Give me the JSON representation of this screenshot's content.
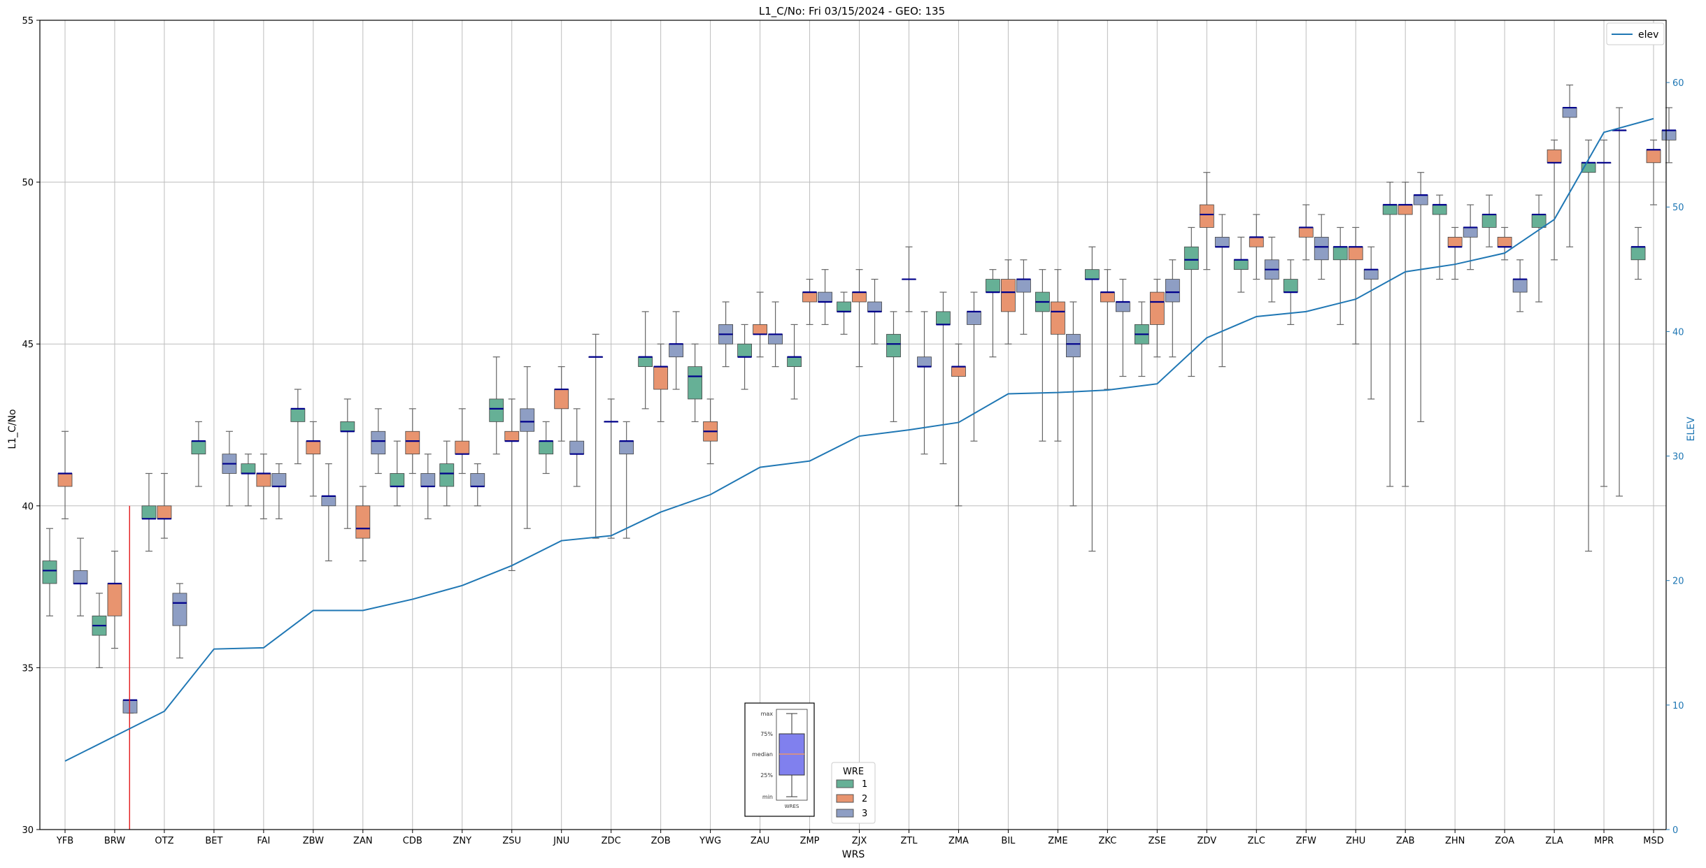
{
  "chart_data": {
    "type": "boxplot",
    "title": "L1_C/No: Fri 03/15/2024 - GEO: 135",
    "xlabel": "WRS",
    "ylabel": "L1_C/No",
    "y2label": "ELEV",
    "ylim": [
      30,
      55
    ],
    "y2lim": [
      0,
      65
    ],
    "yticks": [
      30,
      35,
      40,
      45,
      50,
      55
    ],
    "y2ticks": [
      0,
      10,
      20,
      30,
      40,
      50,
      60
    ],
    "grid": true,
    "colors": {
      "wre1": "#66b096",
      "wre2": "#e8946f",
      "wre3": "#8e9ec4",
      "elev": "#1f77b4",
      "median": "#00008b",
      "marker": "#e31a1c"
    },
    "categories": [
      "YFB",
      "BRW",
      "OTZ",
      "BET",
      "FAI",
      "ZBW",
      "ZAN",
      "CDB",
      "ZNY",
      "ZSU",
      "JNU",
      "ZDC",
      "ZOB",
      "YWG",
      "ZAU",
      "ZMP",
      "ZJX",
      "ZTL",
      "ZMA",
      "BIL",
      "ZME",
      "ZKC",
      "ZSE",
      "ZDV",
      "ZLC",
      "ZFW",
      "ZHU",
      "ZAB",
      "ZHN",
      "ZOA",
      "ZLA",
      "MPR",
      "MSD"
    ],
    "elev_series": {
      "name": "elev",
      "values": [
        5.5,
        7.5,
        9.5,
        14.5,
        14.6,
        17.6,
        17.6,
        18.5,
        19.6,
        21.2,
        23.2,
        23.6,
        25.5,
        26.9,
        29.1,
        29.6,
        31.6,
        32.1,
        32.7,
        35.0,
        35.1,
        35.3,
        35.8,
        39.5,
        41.2,
        41.6,
        42.6,
        44.8,
        45.4,
        46.3,
        49.0,
        56.0,
        57.1
      ]
    },
    "vertical_marker": {
      "category_position": 1.3,
      "ymin": 30,
      "ymax": 40
    },
    "boxes": [
      {
        "wrs": "YFB",
        "wre": 1,
        "min": 36.6,
        "q1": 37.6,
        "median": 38.0,
        "q3": 38.3,
        "max": 39.3
      },
      {
        "wrs": "YFB",
        "wre": 2,
        "min": 39.6,
        "q1": 40.6,
        "median": 41.0,
        "q3": 41.0,
        "max": 42.3
      },
      {
        "wrs": "YFB",
        "wre": 3,
        "min": 36.6,
        "q1": 37.6,
        "median": 37.6,
        "q3": 38.0,
        "max": 39.0
      },
      {
        "wrs": "BRW",
        "wre": 1,
        "min": 35.0,
        "q1": 36.0,
        "median": 36.3,
        "q3": 36.6,
        "max": 37.3
      },
      {
        "wrs": "BRW",
        "wre": 2,
        "min": 35.6,
        "q1": 36.6,
        "median": 37.6,
        "q3": 37.6,
        "max": 38.6
      },
      {
        "wrs": "BRW",
        "wre": 3,
        "min": 33.6,
        "q1": 33.6,
        "median": 34.0,
        "q3": 34.0,
        "max": 34.0
      },
      {
        "wrs": "OTZ",
        "wre": 1,
        "min": 38.6,
        "q1": 39.6,
        "median": 39.6,
        "q3": 40.0,
        "max": 41.0
      },
      {
        "wrs": "OTZ",
        "wre": 2,
        "min": 39.0,
        "q1": 39.6,
        "median": 39.6,
        "q3": 40.0,
        "max": 41.0
      },
      {
        "wrs": "OTZ",
        "wre": 3,
        "min": 35.3,
        "q1": 36.3,
        "median": 37.0,
        "q3": 37.3,
        "max": 37.6
      },
      {
        "wrs": "BET",
        "wre": 1,
        "min": 40.6,
        "q1": 41.6,
        "median": 42.0,
        "q3": 42.0,
        "max": 42.6
      },
      {
        "wrs": "BET",
        "wre": 3,
        "min": 40.0,
        "q1": 41.0,
        "median": 41.3,
        "q3": 41.6,
        "max": 42.3
      },
      {
        "wrs": "FAI",
        "wre": 1,
        "min": 40.0,
        "q1": 41.0,
        "median": 41.0,
        "q3": 41.3,
        "max": 41.6
      },
      {
        "wrs": "FAI",
        "wre": 2,
        "min": 39.6,
        "q1": 40.6,
        "median": 41.0,
        "q3": 41.0,
        "max": 41.6
      },
      {
        "wrs": "FAI",
        "wre": 3,
        "min": 39.6,
        "q1": 40.6,
        "median": 40.6,
        "q3": 41.0,
        "max": 41.3
      },
      {
        "wrs": "ZBW",
        "wre": 1,
        "min": 41.3,
        "q1": 42.6,
        "median": 43.0,
        "q3": 43.0,
        "max": 43.6
      },
      {
        "wrs": "ZBW",
        "wre": 2,
        "min": 40.3,
        "q1": 41.6,
        "median": 42.0,
        "q3": 42.0,
        "max": 42.6
      },
      {
        "wrs": "ZBW",
        "wre": 3,
        "min": 38.3,
        "q1": 40.0,
        "median": 40.3,
        "q3": 40.3,
        "max": 41.3
      },
      {
        "wrs": "ZAN",
        "wre": 1,
        "min": 39.3,
        "q1": 42.3,
        "median": 42.3,
        "q3": 42.6,
        "max": 43.3
      },
      {
        "wrs": "ZAN",
        "wre": 2,
        "min": 38.3,
        "q1": 39.0,
        "median": 39.3,
        "q3": 40.0,
        "max": 40.6
      },
      {
        "wrs": "ZAN",
        "wre": 3,
        "min": 41.0,
        "q1": 41.6,
        "median": 42.0,
        "q3": 42.3,
        "max": 43.0
      },
      {
        "wrs": "CDB",
        "wre": 1,
        "min": 40.0,
        "q1": 40.6,
        "median": 40.6,
        "q3": 41.0,
        "max": 42.0
      },
      {
        "wrs": "CDB",
        "wre": 2,
        "min": 41.0,
        "q1": 41.6,
        "median": 42.0,
        "q3": 42.3,
        "max": 43.0
      },
      {
        "wrs": "CDB",
        "wre": 3,
        "min": 39.6,
        "q1": 40.6,
        "median": 40.6,
        "q3": 41.0,
        "max": 41.6
      },
      {
        "wrs": "ZNY",
        "wre": 1,
        "min": 40.0,
        "q1": 40.6,
        "median": 41.0,
        "q3": 41.3,
        "max": 42.0
      },
      {
        "wrs": "ZNY",
        "wre": 2,
        "min": 41.0,
        "q1": 41.6,
        "median": 41.6,
        "q3": 42.0,
        "max": 43.0
      },
      {
        "wrs": "ZNY",
        "wre": 3,
        "min": 40.0,
        "q1": 40.6,
        "median": 40.6,
        "q3": 41.0,
        "max": 41.3
      },
      {
        "wrs": "ZSU",
        "wre": 1,
        "min": 41.6,
        "q1": 42.6,
        "median": 43.0,
        "q3": 43.3,
        "max": 44.6
      },
      {
        "wrs": "ZSU",
        "wre": 2,
        "min": 38.0,
        "q1": 42.0,
        "median": 42.0,
        "q3": 42.3,
        "max": 43.3
      },
      {
        "wrs": "ZSU",
        "wre": 3,
        "min": 39.3,
        "q1": 42.3,
        "median": 42.6,
        "q3": 43.0,
        "max": 44.3
      },
      {
        "wrs": "JNU",
        "wre": 1,
        "min": 41.0,
        "q1": 41.6,
        "median": 42.0,
        "q3": 42.0,
        "max": 42.6
      },
      {
        "wrs": "JNU",
        "wre": 2,
        "min": 42.0,
        "q1": 43.0,
        "median": 43.6,
        "q3": 43.6,
        "max": 44.3
      },
      {
        "wrs": "JNU",
        "wre": 3,
        "min": 40.6,
        "q1": 41.6,
        "median": 41.6,
        "q3": 42.0,
        "max": 43.0
      },
      {
        "wrs": "ZDC",
        "wre": 1,
        "min": 39.0,
        "q1": 44.6,
        "median": 44.6,
        "q3": 44.6,
        "max": 45.3
      },
      {
        "wrs": "ZDC",
        "wre": 2,
        "min": 39.0,
        "q1": 42.6,
        "median": 42.6,
        "q3": 42.6,
        "max": 43.3
      },
      {
        "wrs": "ZDC",
        "wre": 3,
        "min": 39.0,
        "q1": 41.6,
        "median": 42.0,
        "q3": 42.0,
        "max": 42.6
      },
      {
        "wrs": "ZOB",
        "wre": 1,
        "min": 43.0,
        "q1": 44.3,
        "median": 44.6,
        "q3": 44.6,
        "max": 46.0
      },
      {
        "wrs": "ZOB",
        "wre": 2,
        "min": 42.6,
        "q1": 43.6,
        "median": 44.3,
        "q3": 44.3,
        "max": 45.0
      },
      {
        "wrs": "ZOB",
        "wre": 3,
        "min": 43.6,
        "q1": 44.6,
        "median": 45.0,
        "q3": 45.0,
        "max": 46.0
      },
      {
        "wrs": "YWG",
        "wre": 1,
        "min": 42.6,
        "q1": 43.3,
        "median": 44.0,
        "q3": 44.3,
        "max": 45.0
      },
      {
        "wrs": "YWG",
        "wre": 2,
        "min": 41.3,
        "q1": 42.0,
        "median": 42.3,
        "q3": 42.6,
        "max": 43.3
      },
      {
        "wrs": "YWG",
        "wre": 3,
        "min": 44.3,
        "q1": 45.0,
        "median": 45.3,
        "q3": 45.6,
        "max": 46.3
      },
      {
        "wrs": "ZAU",
        "wre": 1,
        "min": 43.6,
        "q1": 44.6,
        "median": 44.6,
        "q3": 45.0,
        "max": 45.6
      },
      {
        "wrs": "ZAU",
        "wre": 2,
        "min": 44.6,
        "q1": 45.3,
        "median": 45.3,
        "q3": 45.6,
        "max": 46.6
      },
      {
        "wrs": "ZAU",
        "wre": 3,
        "min": 44.3,
        "q1": 45.0,
        "median": 45.3,
        "q3": 45.3,
        "max": 46.3
      },
      {
        "wrs": "ZMP",
        "wre": 1,
        "min": 43.3,
        "q1": 44.3,
        "median": 44.6,
        "q3": 44.6,
        "max": 45.6
      },
      {
        "wrs": "ZMP",
        "wre": 2,
        "min": 45.6,
        "q1": 46.3,
        "median": 46.6,
        "q3": 46.6,
        "max": 47.0
      },
      {
        "wrs": "ZMP",
        "wre": 3,
        "min": 45.6,
        "q1": 46.3,
        "median": 46.3,
        "q3": 46.6,
        "max": 47.3
      },
      {
        "wrs": "ZJX",
        "wre": 1,
        "min": 45.3,
        "q1": 46.0,
        "median": 46.0,
        "q3": 46.3,
        "max": 46.6
      },
      {
        "wrs": "ZJX",
        "wre": 2,
        "min": 44.3,
        "q1": 46.3,
        "median": 46.6,
        "q3": 46.6,
        "max": 47.3
      },
      {
        "wrs": "ZJX",
        "wre": 3,
        "min": 45.0,
        "q1": 46.0,
        "median": 46.0,
        "q3": 46.3,
        "max": 47.0
      },
      {
        "wrs": "ZTL",
        "wre": 1,
        "min": 42.6,
        "q1": 44.6,
        "median": 45.0,
        "q3": 45.3,
        "max": 46.0
      },
      {
        "wrs": "ZTL",
        "wre": 2,
        "min": 46.0,
        "q1": 47.0,
        "median": 47.0,
        "q3": 47.0,
        "max": 48.0
      },
      {
        "wrs": "ZTL",
        "wre": 3,
        "min": 41.6,
        "q1": 44.3,
        "median": 44.3,
        "q3": 44.6,
        "max": 46.0
      },
      {
        "wrs": "ZMA",
        "wre": 1,
        "min": 41.3,
        "q1": 45.6,
        "median": 45.6,
        "q3": 46.0,
        "max": 46.6
      },
      {
        "wrs": "ZMA",
        "wre": 2,
        "min": 40.0,
        "q1": 44.0,
        "median": 44.3,
        "q3": 44.3,
        "max": 45.0
      },
      {
        "wrs": "ZMA",
        "wre": 3,
        "min": 42.0,
        "q1": 45.6,
        "median": 46.0,
        "q3": 46.0,
        "max": 46.6
      },
      {
        "wrs": "BIL",
        "wre": 1,
        "min": 44.6,
        "q1": 46.6,
        "median": 46.6,
        "q3": 47.0,
        "max": 47.3
      },
      {
        "wrs": "BIL",
        "wre": 2,
        "min": 45.0,
        "q1": 46.0,
        "median": 46.6,
        "q3": 47.0,
        "max": 47.6
      },
      {
        "wrs": "BIL",
        "wre": 3,
        "min": 45.3,
        "q1": 46.6,
        "median": 47.0,
        "q3": 47.0,
        "max": 47.6
      },
      {
        "wrs": "ZME",
        "wre": 1,
        "min": 42.0,
        "q1": 46.0,
        "median": 46.3,
        "q3": 46.6,
        "max": 47.3
      },
      {
        "wrs": "ZME",
        "wre": 2,
        "min": 42.0,
        "q1": 45.3,
        "median": 46.0,
        "q3": 46.3,
        "max": 47.3
      },
      {
        "wrs": "ZME",
        "wre": 3,
        "min": 40.0,
        "q1": 44.6,
        "median": 45.0,
        "q3": 45.3,
        "max": 46.3
      },
      {
        "wrs": "ZKC",
        "wre": 1,
        "min": 38.6,
        "q1": 47.0,
        "median": 47.0,
        "q3": 47.3,
        "max": 48.0
      },
      {
        "wrs": "ZKC",
        "wre": 2,
        "min": 43.6,
        "q1": 46.3,
        "median": 46.6,
        "q3": 46.6,
        "max": 47.3
      },
      {
        "wrs": "ZKC",
        "wre": 3,
        "min": 44.0,
        "q1": 46.0,
        "median": 46.3,
        "q3": 46.3,
        "max": 47.0
      },
      {
        "wrs": "ZSE",
        "wre": 1,
        "min": 44.0,
        "q1": 45.0,
        "median": 45.3,
        "q3": 45.6,
        "max": 46.3
      },
      {
        "wrs": "ZSE",
        "wre": 2,
        "min": 44.6,
        "q1": 45.6,
        "median": 46.3,
        "q3": 46.6,
        "max": 47.0
      },
      {
        "wrs": "ZSE",
        "wre": 3,
        "min": 44.6,
        "q1": 46.3,
        "median": 46.6,
        "q3": 47.0,
        "max": 47.6
      },
      {
        "wrs": "ZDV",
        "wre": 1,
        "min": 44.0,
        "q1": 47.3,
        "median": 47.6,
        "q3": 48.0,
        "max": 48.6
      },
      {
        "wrs": "ZDV",
        "wre": 2,
        "min": 47.3,
        "q1": 48.6,
        "median": 49.0,
        "q3": 49.3,
        "max": 50.3
      },
      {
        "wrs": "ZDV",
        "wre": 3,
        "min": 44.3,
        "q1": 48.0,
        "median": 48.0,
        "q3": 48.3,
        "max": 49.0
      },
      {
        "wrs": "ZLC",
        "wre": 1,
        "min": 46.6,
        "q1": 47.3,
        "median": 47.6,
        "q3": 47.6,
        "max": 48.3
      },
      {
        "wrs": "ZLC",
        "wre": 2,
        "min": 47.0,
        "q1": 48.0,
        "median": 48.3,
        "q3": 48.3,
        "max": 49.0
      },
      {
        "wrs": "ZLC",
        "wre": 3,
        "min": 46.3,
        "q1": 47.0,
        "median": 47.3,
        "q3": 47.6,
        "max": 48.3
      },
      {
        "wrs": "ZFW",
        "wre": 1,
        "min": 45.6,
        "q1": 46.6,
        "median": 46.6,
        "q3": 47.0,
        "max": 47.6
      },
      {
        "wrs": "ZFW",
        "wre": 2,
        "min": 47.6,
        "q1": 48.3,
        "median": 48.6,
        "q3": 48.6,
        "max": 49.3
      },
      {
        "wrs": "ZFW",
        "wre": 3,
        "min": 47.0,
        "q1": 47.6,
        "median": 48.0,
        "q3": 48.3,
        "max": 49.0
      },
      {
        "wrs": "ZHU",
        "wre": 1,
        "min": 45.6,
        "q1": 47.6,
        "median": 48.0,
        "q3": 48.0,
        "max": 48.6
      },
      {
        "wrs": "ZHU",
        "wre": 2,
        "min": 45.0,
        "q1": 47.6,
        "median": 48.0,
        "q3": 48.0,
        "max": 48.6
      },
      {
        "wrs": "ZHU",
        "wre": 3,
        "min": 43.3,
        "q1": 47.0,
        "median": 47.3,
        "q3": 47.3,
        "max": 48.0
      },
      {
        "wrs": "ZAB",
        "wre": 1,
        "min": 40.6,
        "q1": 49.0,
        "median": 49.3,
        "q3": 49.3,
        "max": 50.0
      },
      {
        "wrs": "ZAB",
        "wre": 2,
        "min": 40.6,
        "q1": 49.0,
        "median": 49.3,
        "q3": 49.3,
        "max": 50.0
      },
      {
        "wrs": "ZAB",
        "wre": 3,
        "min": 42.6,
        "q1": 49.3,
        "median": 49.6,
        "q3": 49.6,
        "max": 50.3
      },
      {
        "wrs": "ZHN",
        "wre": 1,
        "min": 47.0,
        "q1": 49.0,
        "median": 49.3,
        "q3": 49.3,
        "max": 49.6
      },
      {
        "wrs": "ZHN",
        "wre": 2,
        "min": 47.0,
        "q1": 48.0,
        "median": 48.0,
        "q3": 48.3,
        "max": 48.6
      },
      {
        "wrs": "ZHN",
        "wre": 3,
        "min": 47.3,
        "q1": 48.3,
        "median": 48.6,
        "q3": 48.6,
        "max": 49.3
      },
      {
        "wrs": "ZOA",
        "wre": 1,
        "min": 48.0,
        "q1": 48.6,
        "median": 49.0,
        "q3": 49.0,
        "max": 49.6
      },
      {
        "wrs": "ZOA",
        "wre": 2,
        "min": 47.6,
        "q1": 48.0,
        "median": 48.0,
        "q3": 48.3,
        "max": 48.6
      },
      {
        "wrs": "ZOA",
        "wre": 3,
        "min": 46.0,
        "q1": 46.6,
        "median": 47.0,
        "q3": 47.0,
        "max": 47.6
      },
      {
        "wrs": "ZLA",
        "wre": 1,
        "min": 46.3,
        "q1": 48.6,
        "median": 49.0,
        "q3": 49.0,
        "max": 49.6
      },
      {
        "wrs": "ZLA",
        "wre": 2,
        "min": 47.6,
        "q1": 50.6,
        "median": 50.6,
        "q3": 51.0,
        "max": 51.3
      },
      {
        "wrs": "ZLA",
        "wre": 3,
        "min": 48.0,
        "q1": 52.0,
        "median": 52.3,
        "q3": 52.3,
        "max": 53.0
      },
      {
        "wrs": "MPR",
        "wre": 1,
        "min": 38.6,
        "q1": 50.3,
        "median": 50.6,
        "q3": 50.6,
        "max": 51.3
      },
      {
        "wrs": "MPR",
        "wre": 2,
        "min": 40.6,
        "q1": 50.6,
        "median": 50.6,
        "q3": 50.6,
        "max": 51.3
      },
      {
        "wrs": "MPR",
        "wre": 3,
        "min": 40.3,
        "q1": 51.6,
        "median": 51.6,
        "q3": 51.6,
        "max": 52.3
      },
      {
        "wrs": "MSD",
        "wre": 1,
        "min": 47.0,
        "q1": 47.6,
        "median": 48.0,
        "q3": 48.0,
        "max": 48.6
      },
      {
        "wrs": "MSD",
        "wre": 2,
        "min": 49.3,
        "q1": 50.6,
        "median": 51.0,
        "q3": 51.0,
        "max": 51.3
      },
      {
        "wrs": "MSD",
        "wre": 3,
        "min": 50.6,
        "q1": 51.3,
        "median": 51.6,
        "q3": 51.6,
        "max": 52.3
      }
    ]
  },
  "legend_elev": {
    "label": "elev"
  },
  "legend_wre": {
    "title": "WRE",
    "items": [
      "1",
      "2",
      "3"
    ]
  },
  "inset_key": {
    "labels": [
      "max",
      "75%",
      "median",
      "25%",
      "min"
    ],
    "caption": "WRES"
  }
}
